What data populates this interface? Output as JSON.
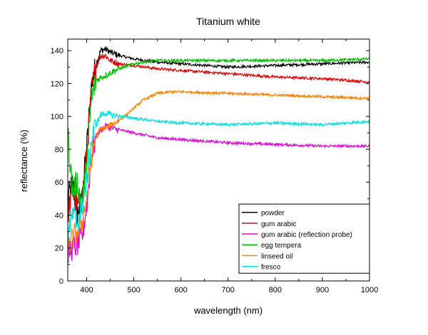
{
  "chart_data": {
    "type": "line",
    "title": "Titanium white",
    "xlabel": "wavelength (nm)",
    "ylabel": "reflectance (%)",
    "xlim": [
      360,
      1000
    ],
    "ylim": [
      0,
      147
    ],
    "xticks": [
      400,
      500,
      600,
      700,
      800,
      900,
      1000
    ],
    "yticks": [
      0,
      20,
      40,
      60,
      80,
      100,
      120,
      140
    ],
    "grid": false,
    "legend_position": "lower-right",
    "series": [
      {
        "name": "powder",
        "color": "#000000",
        "x": [
          360,
          370,
          380,
          390,
          400,
          410,
          420,
          430,
          440,
          450,
          470,
          500,
          550,
          600,
          700,
          800,
          900,
          1000
        ],
        "y": [
          50,
          60,
          40,
          50,
          80,
          118,
          132,
          140,
          141,
          139,
          137,
          135,
          133,
          132,
          130,
          131,
          132,
          133
        ]
      },
      {
        "name": "gum arabic",
        "color": "#e00000",
        "x": [
          360,
          370,
          380,
          390,
          400,
          410,
          420,
          430,
          440,
          450,
          470,
          500,
          550,
          600,
          700,
          800,
          900,
          1000
        ],
        "y": [
          40,
          55,
          45,
          50,
          75,
          115,
          130,
          137,
          137,
          134,
          132,
          131,
          129,
          128,
          126,
          124,
          123,
          121
        ]
      },
      {
        "name": "gum arabic (reflection probe)",
        "color": "#e000e0",
        "x": [
          360,
          370,
          380,
          390,
          400,
          410,
          420,
          430,
          440,
          450,
          500,
          550,
          600,
          700,
          800,
          900,
          1000
        ],
        "y": [
          18,
          20,
          22,
          26,
          45,
          75,
          88,
          92,
          94,
          93,
          90,
          87,
          86,
          84,
          83,
          82,
          82
        ]
      },
      {
        "name": "egg tempera",
        "color": "#00c000",
        "x": [
          360,
          370,
          380,
          390,
          400,
          410,
          420,
          440,
          460,
          480,
          500,
          520,
          550,
          600,
          700,
          800,
          900,
          1000
        ],
        "y": [
          90,
          55,
          60,
          45,
          70,
          110,
          122,
          125,
          128,
          130,
          132,
          133,
          134,
          134,
          134,
          134,
          134,
          135
        ]
      },
      {
        "name": "linseed oil",
        "color": "#ff8000",
        "x": [
          360,
          370,
          380,
          390,
          400,
          410,
          420,
          430,
          440,
          460,
          480,
          500,
          520,
          550,
          580,
          600,
          700,
          800,
          900,
          1000
        ],
        "y": [
          20,
          25,
          30,
          35,
          50,
          75,
          88,
          92,
          93,
          96,
          100,
          105,
          110,
          114,
          115,
          115,
          114,
          113,
          112,
          111
        ]
      },
      {
        "name": "fresco",
        "color": "#00e0e0",
        "x": [
          360,
          370,
          380,
          390,
          400,
          410,
          420,
          430,
          440,
          450,
          500,
          550,
          600,
          700,
          800,
          900,
          1000
        ],
        "y": [
          30,
          40,
          35,
          45,
          60,
          85,
          95,
          101,
          102,
          101,
          99,
          97,
          96,
          95,
          96,
          95,
          97
        ]
      }
    ]
  }
}
